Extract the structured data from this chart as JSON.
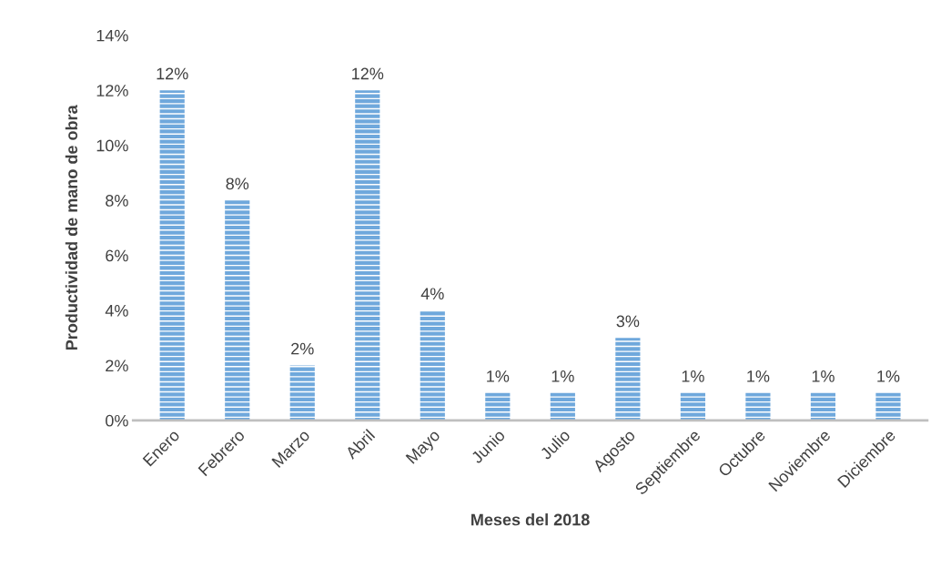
{
  "chart_data": {
    "type": "bar",
    "xlabel": "Meses del 2018",
    "ylabel": "Productividad de mano de obra",
    "categories": [
      "Enero",
      "Febrero",
      "Marzo",
      "Abril",
      "Mayo",
      "Junio",
      "Julio",
      "Agosto",
      "Septiembre",
      "Octubre",
      "Noviembre",
      "Diciembre"
    ],
    "values": [
      12,
      8,
      2,
      12,
      4,
      1,
      1,
      3,
      1,
      1,
      1,
      1
    ],
    "value_labels": [
      "12%",
      "8%",
      "2%",
      "12%",
      "4%",
      "1%",
      "1%",
      "3%",
      "1%",
      "1%",
      "1%",
      "1%"
    ],
    "color": "#6fa8dc",
    "ylim": [
      0,
      14
    ],
    "yticks": [
      {
        "value": 0,
        "label": "0%"
      },
      {
        "value": 2,
        "label": "2%"
      },
      {
        "value": 4,
        "label": "4%"
      },
      {
        "value": 6,
        "label": "6%"
      },
      {
        "value": 8,
        "label": "8%"
      },
      {
        "value": 10,
        "label": "10%"
      },
      {
        "value": 12,
        "label": "12%"
      },
      {
        "value": 14,
        "label": "14%"
      }
    ],
    "grid": false,
    "legend": false
  }
}
